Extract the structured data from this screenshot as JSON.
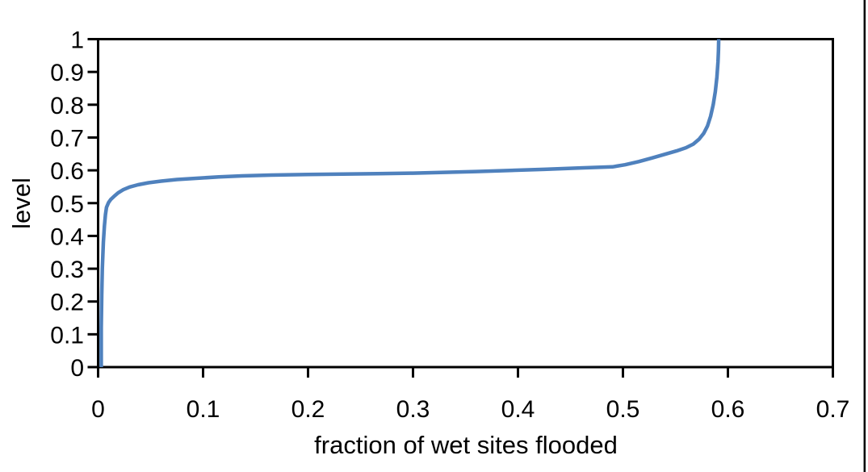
{
  "figure": {
    "background_color": "#ffffff",
    "right_edge_line_color": "#000000"
  },
  "chart_data": {
    "type": "line",
    "title": "",
    "xlabel": "fraction of wet sites flooded",
    "ylabel": "level",
    "xlim": [
      0,
      0.7
    ],
    "ylim": [
      0,
      1
    ],
    "xticks": [
      "0",
      "0.1",
      "0.2",
      "0.3",
      "0.4",
      "0.5",
      "0.6",
      "0.7"
    ],
    "yticks": [
      "0",
      "0.1",
      "0.2",
      "0.3",
      "0.4",
      "0.5",
      "0.6",
      "0.7",
      "0.8",
      "0.9",
      "1"
    ],
    "grid": false,
    "legend": "none",
    "line_color": "#4f81bd",
    "axis_color": "#000000",
    "series": [
      {
        "name": "level",
        "points": [
          [
            0.003,
            0.0
          ],
          [
            0.003,
            0.12
          ],
          [
            0.0035,
            0.22
          ],
          [
            0.004,
            0.3
          ],
          [
            0.005,
            0.38
          ],
          [
            0.006,
            0.43
          ],
          [
            0.007,
            0.465
          ],
          [
            0.008,
            0.487
          ],
          [
            0.01,
            0.502
          ],
          [
            0.012,
            0.511
          ],
          [
            0.015,
            0.52
          ],
          [
            0.019,
            0.531
          ],
          [
            0.024,
            0.541
          ],
          [
            0.03,
            0.549
          ],
          [
            0.038,
            0.556
          ],
          [
            0.048,
            0.562
          ],
          [
            0.06,
            0.567
          ],
          [
            0.075,
            0.572
          ],
          [
            0.095,
            0.576
          ],
          [
            0.115,
            0.58
          ],
          [
            0.137,
            0.583
          ],
          [
            0.165,
            0.5855
          ],
          [
            0.2,
            0.5872
          ],
          [
            0.233,
            0.5885
          ],
          [
            0.266,
            0.5898
          ],
          [
            0.3,
            0.5915
          ],
          [
            0.33,
            0.5938
          ],
          [
            0.36,
            0.5962
          ],
          [
            0.39,
            0.5992
          ],
          [
            0.425,
            0.603
          ],
          [
            0.46,
            0.6075
          ],
          [
            0.49,
            0.6105
          ],
          [
            0.502,
            0.617
          ],
          [
            0.515,
            0.6265
          ],
          [
            0.528,
            0.638
          ],
          [
            0.54,
            0.649
          ],
          [
            0.551,
            0.659
          ],
          [
            0.56,
            0.669
          ],
          [
            0.567,
            0.68
          ],
          [
            0.5725,
            0.695
          ],
          [
            0.577,
            0.713
          ],
          [
            0.5805,
            0.735
          ],
          [
            0.5835,
            0.765
          ],
          [
            0.586,
            0.8
          ],
          [
            0.588,
            0.84
          ],
          [
            0.5895,
            0.885
          ],
          [
            0.5905,
            0.93
          ],
          [
            0.591,
            0.965
          ],
          [
            0.5912,
            1.0
          ]
        ]
      }
    ]
  }
}
